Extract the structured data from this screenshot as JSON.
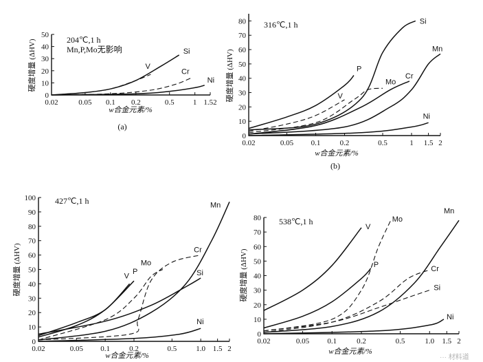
{
  "chart_data": [
    {
      "type": "line",
      "xscale": "log",
      "xlim": [
        0.02,
        1.52
      ],
      "ylim": [
        0,
        50
      ],
      "xticks": [
        "0.02",
        "0.05",
        "0.1",
        "0.2",
        "0.5",
        "1",
        "1.52"
      ],
      "yticks": [
        "0",
        "10",
        "20",
        "30",
        "40",
        "50"
      ],
      "ylabel": "硬度增量 (ΔHV)",
      "xlabel": "w合金元素/%",
      "annotation": "204℃,1 h",
      "annotation2": "Mn,P,Mo无影响",
      "panel": "(a)",
      "series": [
        {
          "name": "Si",
          "dashed": false,
          "x": [
            0.02,
            0.05,
            0.1,
            0.2,
            0.4,
            0.65
          ],
          "y": [
            0,
            2,
            5,
            12,
            24,
            33
          ]
        },
        {
          "name": "V",
          "dashed": true,
          "x": [
            0.02,
            0.05,
            0.1,
            0.2,
            0.3
          ],
          "y": [
            0,
            2,
            5,
            12,
            17
          ]
        },
        {
          "name": "Cr",
          "dashed": true,
          "x": [
            0.02,
            0.1,
            0.3,
            0.6,
            0.9
          ],
          "y": [
            0,
            1,
            4,
            9,
            14
          ]
        },
        {
          "name": "Ni",
          "dashed": false,
          "x": [
            0.02,
            0.2,
            0.5,
            1.0,
            1.3
          ],
          "y": [
            0,
            1,
            3,
            6,
            8
          ]
        }
      ]
    },
    {
      "type": "line",
      "xscale": "log",
      "xlim": [
        0.02,
        2
      ],
      "ylim": [
        0,
        85
      ],
      "xticks": [
        "0.02",
        "0.05",
        "0.1",
        "0.2",
        "0.5",
        "1",
        "1.5",
        "2"
      ],
      "yticks": [
        "0",
        "10",
        "20",
        "30",
        "40",
        "50",
        "60",
        "70",
        "80"
      ],
      "ylabel": "硬度增量 (ΔHV)",
      "xlabel": "w合金元素/%",
      "annotation": "316℃,1 h",
      "panel": "(b)",
      "series": [
        {
          "name": "Si",
          "dashed": false,
          "x": [
            0.02,
            0.1,
            0.3,
            0.5,
            0.8,
            1.1
          ],
          "y": [
            4,
            8,
            26,
            58,
            75,
            80
          ]
        },
        {
          "name": "P",
          "dashed": false,
          "x": [
            0.02,
            0.05,
            0.1,
            0.2,
            0.25
          ],
          "y": [
            5,
            13,
            21,
            35,
            42
          ]
        },
        {
          "name": "V",
          "dashed": true,
          "x": [
            0.02,
            0.05,
            0.1,
            0.2
          ],
          "y": [
            3,
            8,
            14,
            25
          ]
        },
        {
          "name": "Mo",
          "dashed": true,
          "x": [
            0.02,
            0.1,
            0.25,
            0.35,
            0.5
          ],
          "y": [
            2,
            9,
            25,
            32,
            33
          ]
        },
        {
          "name": "Cr",
          "dashed": false,
          "x": [
            0.02,
            0.1,
            0.3,
            0.6,
            0.95
          ],
          "y": [
            1,
            7,
            20,
            32,
            38
          ]
        },
        {
          "name": "Mn",
          "dashed": false,
          "x": [
            0.02,
            0.2,
            0.6,
            1.0,
            1.5,
            2.0
          ],
          "y": [
            1,
            6,
            20,
            32,
            50,
            57
          ]
        },
        {
          "name": "Ni",
          "dashed": false,
          "x": [
            0.02,
            0.3,
            1.0,
            1.5
          ],
          "y": [
            0,
            2,
            6,
            9
          ]
        }
      ]
    },
    {
      "type": "line",
      "xscale": "log",
      "xlim": [
        0.02,
        2
      ],
      "ylim": [
        0,
        100
      ],
      "xticks": [
        "0.02",
        "0.05",
        "0.1",
        "0.2",
        "0.5",
        "1.0",
        "1.5",
        "2"
      ],
      "yticks": [
        "0",
        "10",
        "20",
        "30",
        "40",
        "50",
        "60",
        "70",
        "80",
        "90",
        "100"
      ],
      "ylabel": "硬度增量 (ΔHV)",
      "xlabel": "w合金元素/%",
      "annotation": "427℃,1 h",
      "series": [
        {
          "name": "Mn",
          "dashed": false,
          "x": [
            0.02,
            0.1,
            0.3,
            0.7,
            1.3,
            2.0
          ],
          "y": [
            1,
            7,
            20,
            40,
            70,
            97
          ]
        },
        {
          "name": "Cr",
          "dashed": true,
          "x": [
            0.02,
            0.18,
            0.22,
            0.3,
            0.5,
            1.0
          ],
          "y": [
            1,
            5,
            15,
            42,
            55,
            60
          ]
        },
        {
          "name": "Mo",
          "dashed": true,
          "x": [
            0.02,
            0.1,
            0.2,
            0.3,
            0.4
          ],
          "y": [
            1,
            15,
            30,
            45,
            50
          ]
        },
        {
          "name": "Si",
          "dashed": false,
          "x": [
            0.02,
            0.1,
            0.3,
            0.7,
            1.0
          ],
          "y": [
            5,
            14,
            25,
            38,
            44
          ]
        },
        {
          "name": "V",
          "dashed": false,
          "x": [
            0.02,
            0.05,
            0.1,
            0.18
          ],
          "y": [
            4,
            13,
            22,
            40
          ]
        },
        {
          "name": "P",
          "dashed": false,
          "x": [
            0.02,
            0.05,
            0.1,
            0.2
          ],
          "y": [
            3,
            11,
            22,
            42
          ]
        },
        {
          "name": "Ni",
          "dashed": false,
          "x": [
            0.02,
            0.2,
            0.6,
            1.0
          ],
          "y": [
            0,
            2,
            5,
            9
          ]
        }
      ]
    },
    {
      "type": "line",
      "xscale": "log",
      "xlim": [
        0.02,
        2
      ],
      "ylim": [
        0,
        80
      ],
      "xticks": [
        "0.02",
        "0.05",
        "0.1",
        "0.2",
        "0.5",
        "1.0",
        "1.5",
        "2"
      ],
      "yticks": [
        "0",
        "10",
        "20",
        "30",
        "40",
        "50",
        "60",
        "70",
        "80"
      ],
      "ylabel": "硬度增量 (ΔHV)",
      "xlabel": "w合金元素/%",
      "annotation": "538℃,1 h",
      "series": [
        {
          "name": "V",
          "dashed": false,
          "x": [
            0.02,
            0.05,
            0.1,
            0.2
          ],
          "y": [
            16,
            30,
            47,
            73
          ]
        },
        {
          "name": "Mo",
          "dashed": true,
          "x": [
            0.02,
            0.1,
            0.2,
            0.3,
            0.4
          ],
          "y": [
            2,
            10,
            30,
            60,
            78
          ]
        },
        {
          "name": "Mn",
          "dashed": false,
          "x": [
            0.02,
            0.1,
            0.3,
            0.7,
            1.3,
            2.0
          ],
          "y": [
            1,
            5,
            15,
            35,
            60,
            78
          ]
        },
        {
          "name": "P",
          "dashed": false,
          "x": [
            0.02,
            0.05,
            0.1,
            0.2,
            0.25
          ],
          "y": [
            4,
            12,
            22,
            38,
            45
          ]
        },
        {
          "name": "Cr",
          "dashed": true,
          "x": [
            0.02,
            0.1,
            0.3,
            0.6,
            1.0
          ],
          "y": [
            1,
            8,
            22,
            38,
            44
          ]
        },
        {
          "name": "Si",
          "dashed": true,
          "x": [
            0.02,
            0.1,
            0.3,
            0.6,
            1.0
          ],
          "y": [
            2,
            8,
            18,
            25,
            30
          ]
        },
        {
          "name": "Ni",
          "dashed": false,
          "x": [
            0.02,
            0.3,
            1.0,
            1.4
          ],
          "y": [
            0,
            2,
            6,
            10
          ]
        }
      ]
    }
  ],
  "watermark": "··· 材料道"
}
